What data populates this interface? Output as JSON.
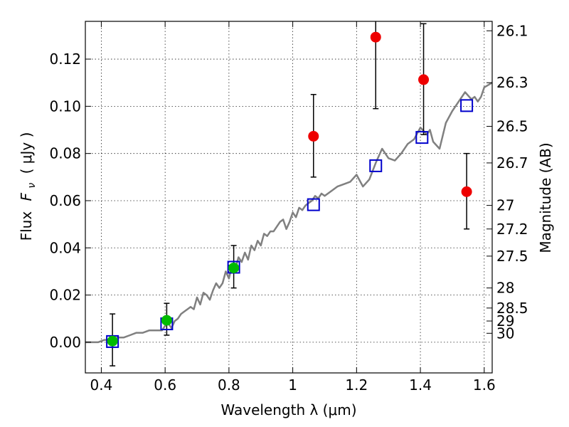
{
  "chart_data": {
    "type": "scatter",
    "xlabel": "Wavelength  λ (μm)",
    "ylabel_prefix": "Flux",
    "ylabel_var": "F",
    "ylabel_sub": "ν",
    "ylabel_unit": "( μJy )",
    "y2label": "Magnitude (AB)",
    "xlim": [
      0.35,
      1.625
    ],
    "ylim": [
      -0.013,
      0.136
    ],
    "grid": true,
    "x_ticks": [
      {
        "value": 0.4,
        "label": "0.4"
      },
      {
        "value": 0.6,
        "label": "0.6"
      },
      {
        "value": 0.8,
        "label": "0.8"
      },
      {
        "value": 1.0,
        "label": "1"
      },
      {
        "value": 1.2,
        "label": "1.2"
      },
      {
        "value": 1.4,
        "label": "1.4"
      },
      {
        "value": 1.6,
        "label": "1.6"
      }
    ],
    "y_ticks": [
      {
        "value": 0.0,
        "label": "0.00"
      },
      {
        "value": 0.02,
        "label": "0.02"
      },
      {
        "value": 0.04,
        "label": "0.04"
      },
      {
        "value": 0.06,
        "label": "0.06"
      },
      {
        "value": 0.08,
        "label": "0.08"
      },
      {
        "value": 0.1,
        "label": "0.10"
      },
      {
        "value": 0.12,
        "label": "0.12"
      }
    ],
    "y2_ticks": [
      {
        "flux": 0.132,
        "label": "26.1"
      },
      {
        "flux": 0.11,
        "label": "26.3"
      },
      {
        "flux": 0.0915,
        "label": "26.5"
      },
      {
        "flux": 0.076,
        "label": "26.7"
      },
      {
        "flux": 0.058,
        "label": "27"
      },
      {
        "flux": 0.048,
        "label": "27.2"
      },
      {
        "flux": 0.0365,
        "label": "27.5"
      },
      {
        "flux": 0.023,
        "label": "28"
      },
      {
        "flux": 0.0145,
        "label": "28.5"
      },
      {
        "flux": 0.009,
        "label": "29"
      },
      {
        "flux": 0.0038,
        "label": "30"
      }
    ],
    "series": [
      {
        "name": "model-spectrum",
        "kind": "line",
        "color": "#808080",
        "x": [
          0.35,
          0.37,
          0.39,
          0.41,
          0.43,
          0.45,
          0.47,
          0.49,
          0.51,
          0.53,
          0.55,
          0.57,
          0.59,
          0.6,
          0.61,
          0.62,
          0.63,
          0.64,
          0.65,
          0.66,
          0.67,
          0.68,
          0.69,
          0.7,
          0.71,
          0.72,
          0.73,
          0.74,
          0.75,
          0.76,
          0.77,
          0.78,
          0.79,
          0.8,
          0.81,
          0.82,
          0.83,
          0.84,
          0.85,
          0.86,
          0.87,
          0.88,
          0.89,
          0.9,
          0.91,
          0.92,
          0.93,
          0.94,
          0.95,
          0.96,
          0.97,
          0.98,
          0.99,
          1.0,
          1.01,
          1.02,
          1.03,
          1.04,
          1.05,
          1.06,
          1.07,
          1.08,
          1.09,
          1.1,
          1.12,
          1.14,
          1.16,
          1.18,
          1.2,
          1.22,
          1.24,
          1.26,
          1.28,
          1.3,
          1.32,
          1.34,
          1.36,
          1.38,
          1.4,
          1.42,
          1.43,
          1.44,
          1.46,
          1.48,
          1.5,
          1.52,
          1.54,
          1.56,
          1.57,
          1.58,
          1.59,
          1.6,
          1.625
        ],
        "y": [
          0.0,
          0.0,
          0.0,
          0.001,
          0.001,
          0.002,
          0.002,
          0.003,
          0.004,
          0.004,
          0.005,
          0.005,
          0.005,
          0.007,
          0.008,
          0.006,
          0.009,
          0.01,
          0.012,
          0.013,
          0.014,
          0.015,
          0.014,
          0.019,
          0.016,
          0.021,
          0.02,
          0.018,
          0.022,
          0.025,
          0.023,
          0.025,
          0.03,
          0.027,
          0.033,
          0.031,
          0.036,
          0.034,
          0.038,
          0.035,
          0.041,
          0.039,
          0.043,
          0.041,
          0.046,
          0.045,
          0.047,
          0.047,
          0.049,
          0.051,
          0.052,
          0.048,
          0.051,
          0.055,
          0.053,
          0.057,
          0.056,
          0.058,
          0.059,
          0.06,
          0.062,
          0.061,
          0.063,
          0.062,
          0.064,
          0.066,
          0.067,
          0.068,
          0.071,
          0.066,
          0.069,
          0.076,
          0.082,
          0.078,
          0.077,
          0.08,
          0.084,
          0.086,
          0.091,
          0.088,
          0.09,
          0.085,
          0.082,
          0.093,
          0.098,
          0.102,
          0.106,
          0.103,
          0.104,
          0.102,
          0.104,
          0.108,
          0.11
        ]
      },
      {
        "name": "observed-optical",
        "kind": "circle",
        "color": "#00bb00",
        "points": [
          {
            "x": 0.435,
            "y": 0.0005,
            "err_lo": 0.0105,
            "err_hi": 0.0115
          },
          {
            "x": 0.605,
            "y": 0.0093,
            "err_lo": 0.0063,
            "err_hi": 0.0072
          },
          {
            "x": 0.815,
            "y": 0.0315,
            "err_lo": 0.0085,
            "err_hi": 0.0095
          }
        ]
      },
      {
        "name": "observed-nir",
        "kind": "circle",
        "color": "#ee0000",
        "points": [
          {
            "x": 1.065,
            "y": 0.0873,
            "err_lo": 0.0173,
            "err_hi": 0.0177
          },
          {
            "x": 1.26,
            "y": 0.1293,
            "err_lo": 0.0303,
            "err_hi": 0.012
          },
          {
            "x": 1.41,
            "y": 0.1113,
            "err_lo": 0.0233,
            "err_hi": 0.0237
          },
          {
            "x": 1.545,
            "y": 0.0638,
            "err_lo": 0.0158,
            "err_hi": 0.0162
          }
        ]
      },
      {
        "name": "model-photometry",
        "kind": "square",
        "color": "#0000cc",
        "points": [
          {
            "x": 0.435,
            "y": 0.0003
          },
          {
            "x": 0.605,
            "y": 0.0078
          },
          {
            "x": 0.815,
            "y": 0.0318
          },
          {
            "x": 1.065,
            "y": 0.0583
          },
          {
            "x": 1.26,
            "y": 0.0748
          },
          {
            "x": 1.405,
            "y": 0.0868
          },
          {
            "x": 1.545,
            "y": 0.1003
          }
        ]
      }
    ]
  }
}
